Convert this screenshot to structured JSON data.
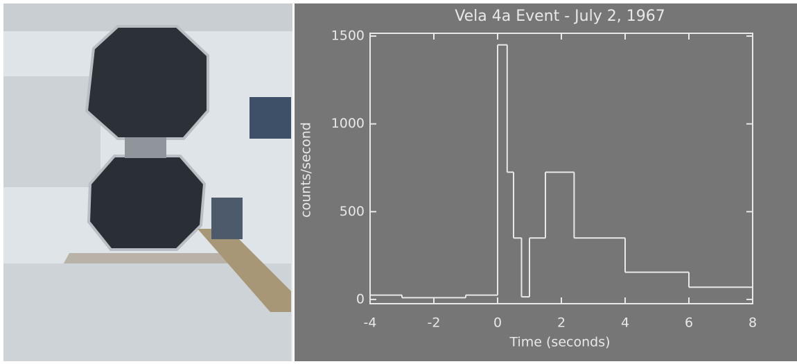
{
  "chart_data": {
    "type": "histogram",
    "title": "Vela 4a Event - July 2, 1967",
    "x_label": "Time (seconds)",
    "y_label": "counts/second",
    "bins": [
      -4,
      -3,
      -1,
      0,
      0.3,
      0.5,
      0.75,
      1,
      1.5,
      2.4,
      4,
      6,
      8
    ],
    "values": [
      25,
      10,
      25,
      1450,
      725,
      350,
      15,
      350,
      725,
      350,
      155,
      70
    ],
    "color": "#e8e8e8",
    "xlim": [
      -4,
      8
    ],
    "xticks": [
      -4,
      -2,
      0,
      2,
      4,
      6,
      8
    ],
    "ylim": [
      -24,
      1516
    ],
    "yticks": [
      0,
      500,
      1000,
      1500
    ]
  }
}
